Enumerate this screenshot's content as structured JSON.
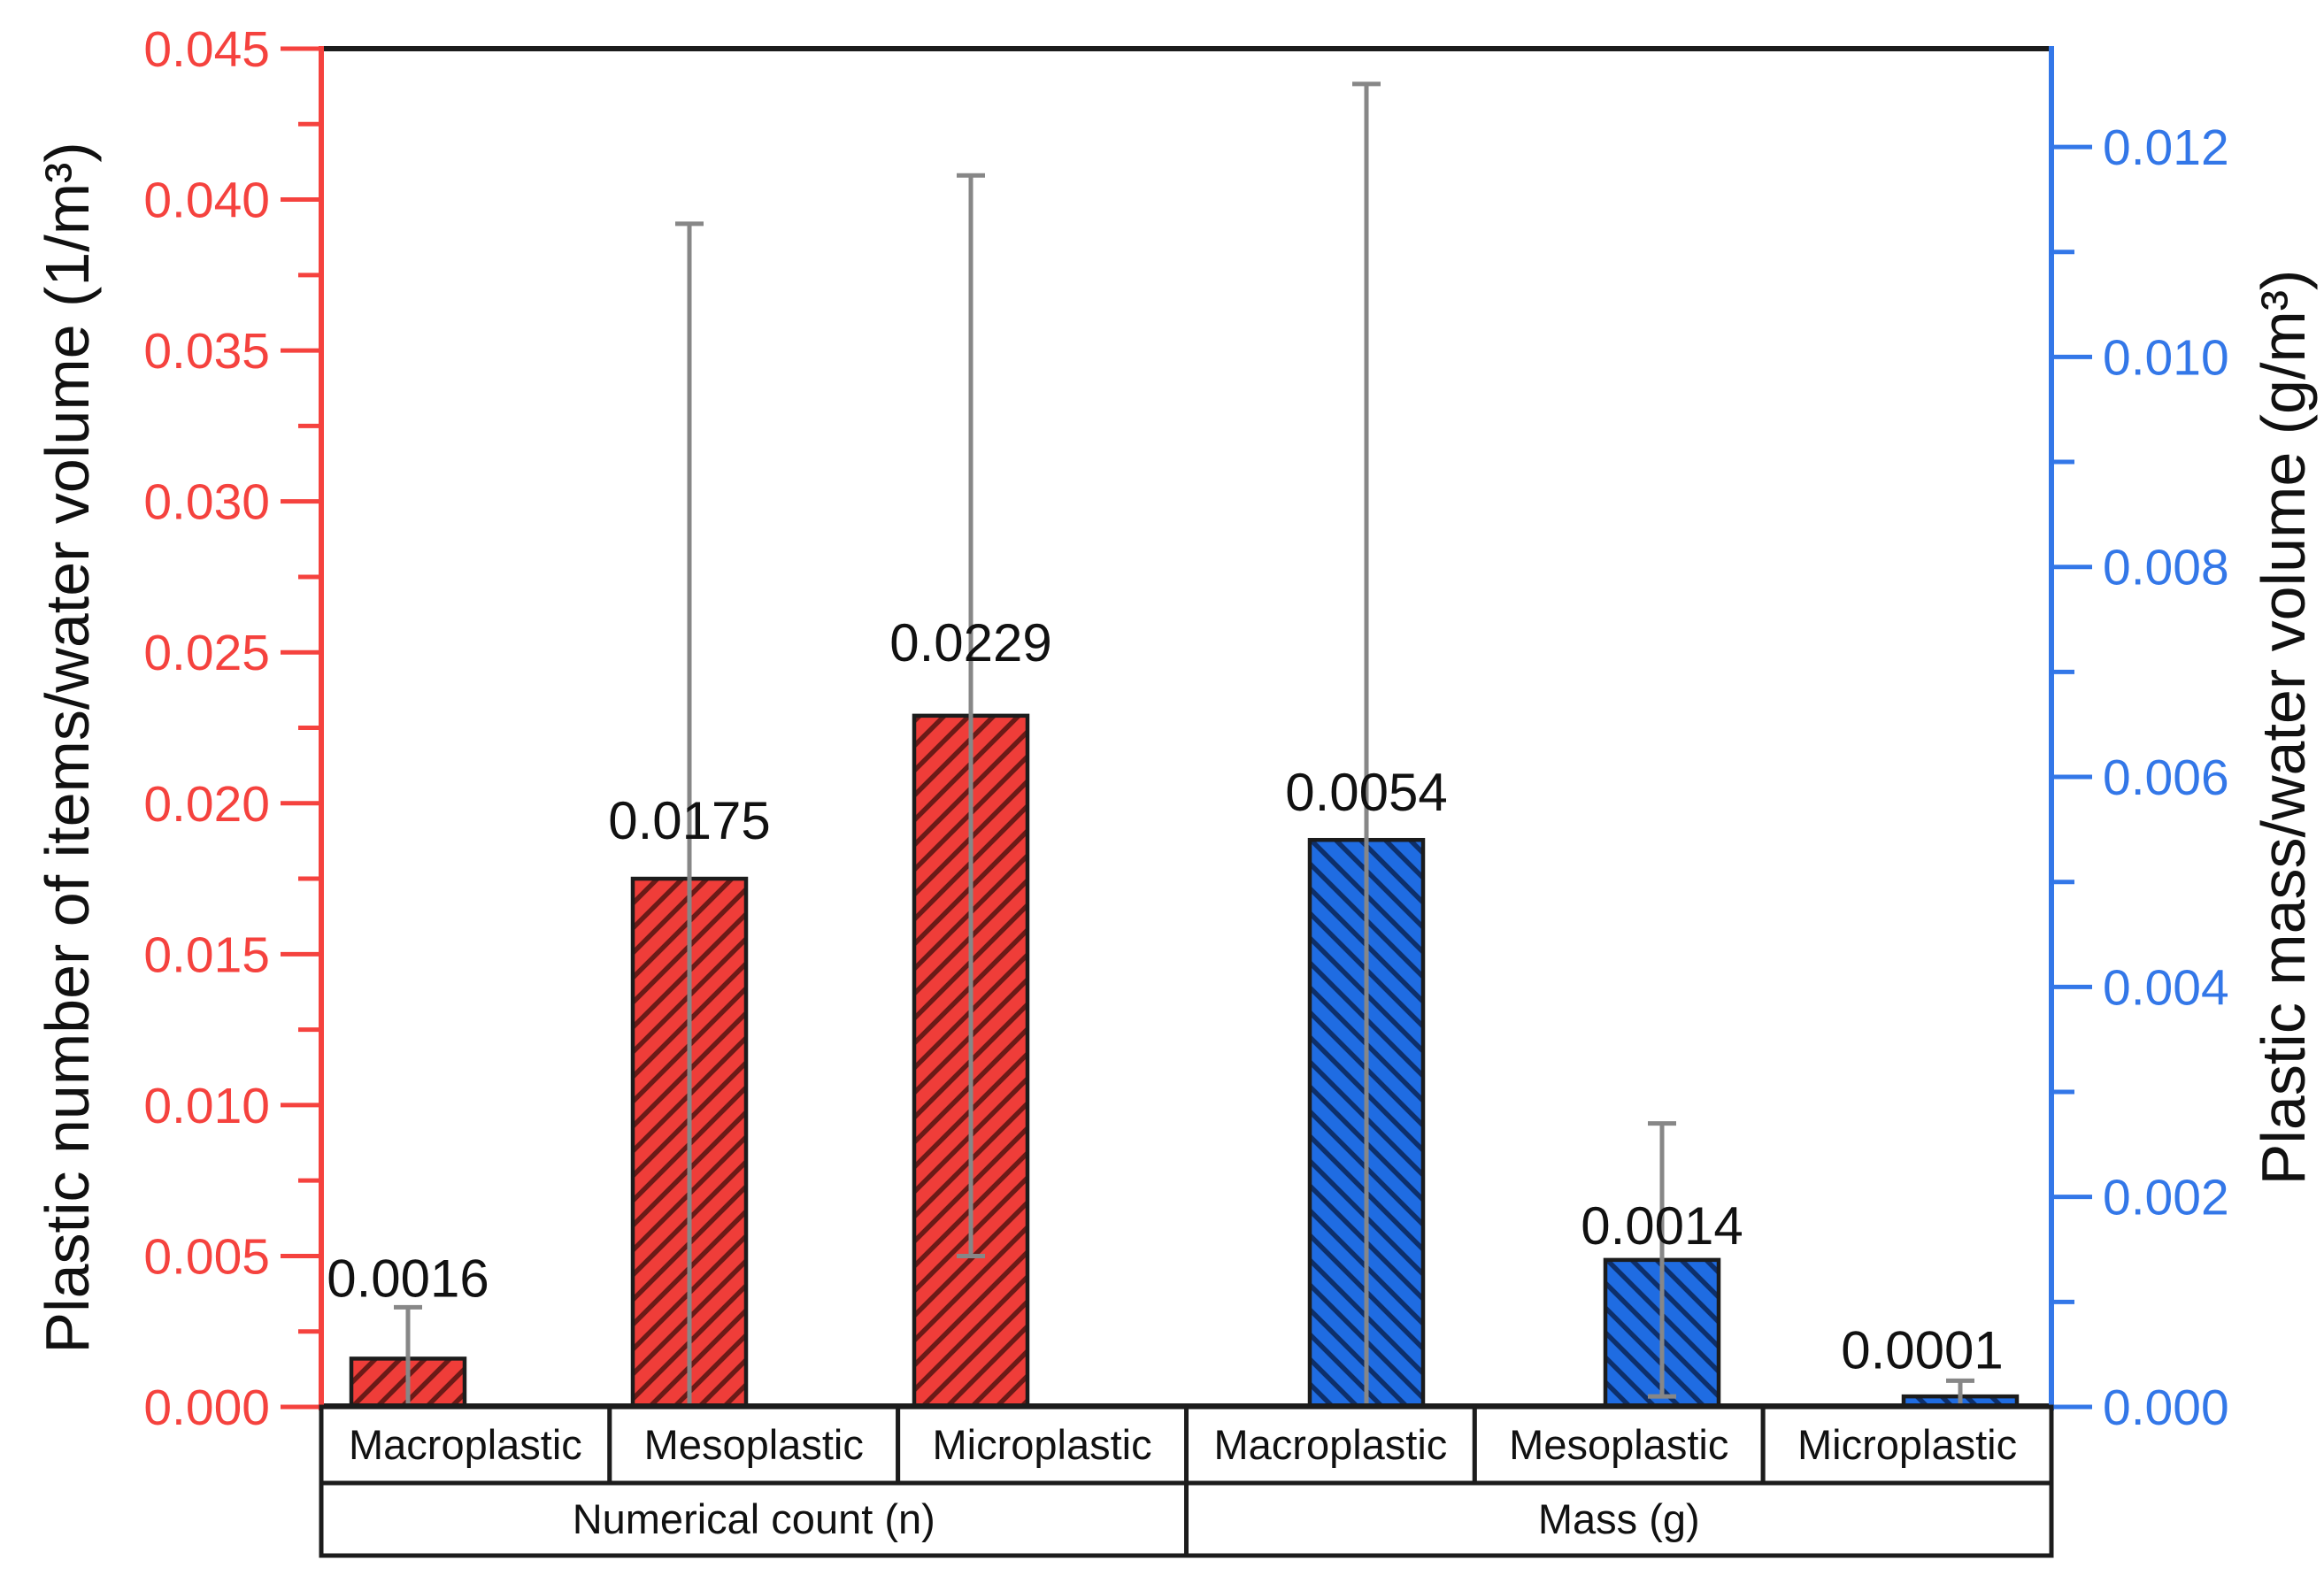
{
  "chart_data": {
    "type": "bar",
    "title": "",
    "dual_axis": true,
    "legend": "none",
    "grid": false,
    "left_axis": {
      "title": "Plastic number of items/water volume (1/m³)",
      "min": 0,
      "max": 0.045,
      "major_tick_step": 0.005,
      "minor_tick_step": 0.0025,
      "tick_labels": [
        "0.000",
        "0.005",
        "0.010",
        "0.015",
        "0.020",
        "0.025",
        "0.030",
        "0.035",
        "0.040",
        "0.045"
      ]
    },
    "right_axis": {
      "title": "Plastic mass/water volume (g/m³)",
      "min": 0,
      "max": 0.012936,
      "major_tick_step": 0.002,
      "minor_tick_step": 0.001,
      "tick_labels": [
        "0.000",
        "0.002",
        "0.004",
        "0.006",
        "0.008",
        "0.010",
        "0.012"
      ]
    },
    "groups": [
      {
        "label": "Numerical count (n)",
        "axis": "left",
        "hatch": "/"
      },
      {
        "label": "Mass (g)",
        "axis": "right",
        "hatch": "\\"
      }
    ],
    "bars": [
      {
        "group": 0,
        "category": "Macroplastic",
        "axis": "left",
        "value": 0.0016,
        "value_label": "0.0016",
        "error_plus": 0.0017,
        "error_minus": 0.0017
      },
      {
        "group": 0,
        "category": "Mesoplastic",
        "axis": "left",
        "value": 0.0175,
        "value_label": "0.0175",
        "error_plus": 0.0217,
        "error_minus": 0.0217
      },
      {
        "group": 0,
        "category": "Microplastic",
        "axis": "left",
        "value": 0.0229,
        "value_label": "0.0229",
        "error_plus": 0.0179,
        "error_minus": 0.0179
      },
      {
        "group": 1,
        "category": "Macroplastic",
        "axis": "right",
        "value": 0.0054,
        "value_label": "0.0054",
        "error_plus": 0.0072,
        "error_minus": 0.0072
      },
      {
        "group": 1,
        "category": "Mesoplastic",
        "axis": "right",
        "value": 0.0014,
        "value_label": "0.0014",
        "error_plus": 0.0013,
        "error_minus": 0.0013
      },
      {
        "group": 1,
        "category": "Microplastic",
        "axis": "right",
        "value": 0.0001,
        "value_label": "0.0001",
        "error_plus": 0.00015,
        "error_minus": 0.00015
      }
    ],
    "colors": {
      "count_bar_fill": "#ef3d39",
      "count_hatch": "#6b1a17",
      "count_axis": "#f5423e",
      "mass_bar_fill": "#1f6ce2",
      "mass_hatch": "#0d2f6b",
      "mass_axis": "#3377e8",
      "error_bar": "#878787",
      "frame": "#1c1c1c",
      "value_label": "#111111",
      "background": "#ffffff"
    }
  }
}
